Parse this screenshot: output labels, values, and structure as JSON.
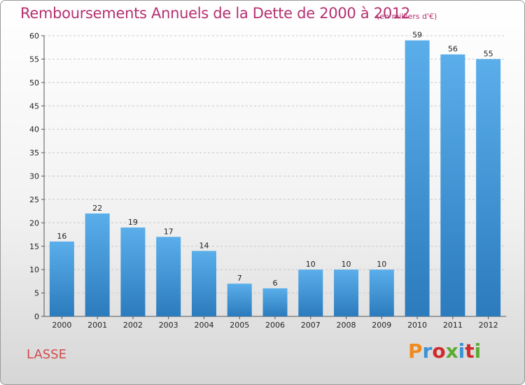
{
  "chart_data": {
    "type": "bar",
    "title": "Remboursements Annuels de la Dette de 2000 à 2012",
    "subtitle": "(en milliers d'€)",
    "categories": [
      "2000",
      "2001",
      "2002",
      "2003",
      "2004",
      "2005",
      "2006",
      "2007",
      "2008",
      "2009",
      "2010",
      "2011",
      "2012"
    ],
    "values": [
      16,
      22,
      19,
      17,
      14,
      7,
      6,
      10,
      10,
      10,
      59,
      56,
      55
    ],
    "xlabel": "",
    "ylabel": "",
    "ylim": [
      0,
      60
    ],
    "yticks": [
      0,
      5,
      10,
      15,
      20,
      25,
      30,
      35,
      40,
      45,
      50,
      55,
      60
    ],
    "grid": "horizontal dashed",
    "bar_color": "#3a93d6"
  },
  "footer": {
    "commune": "LASSE",
    "logo": "Proxiti",
    "logo_colors": [
      "#f08a1c",
      "#3a93d6",
      "#d02a2a",
      "#5bab32",
      "#3a93d6",
      "#d02a2a",
      "#5bab32"
    ]
  }
}
